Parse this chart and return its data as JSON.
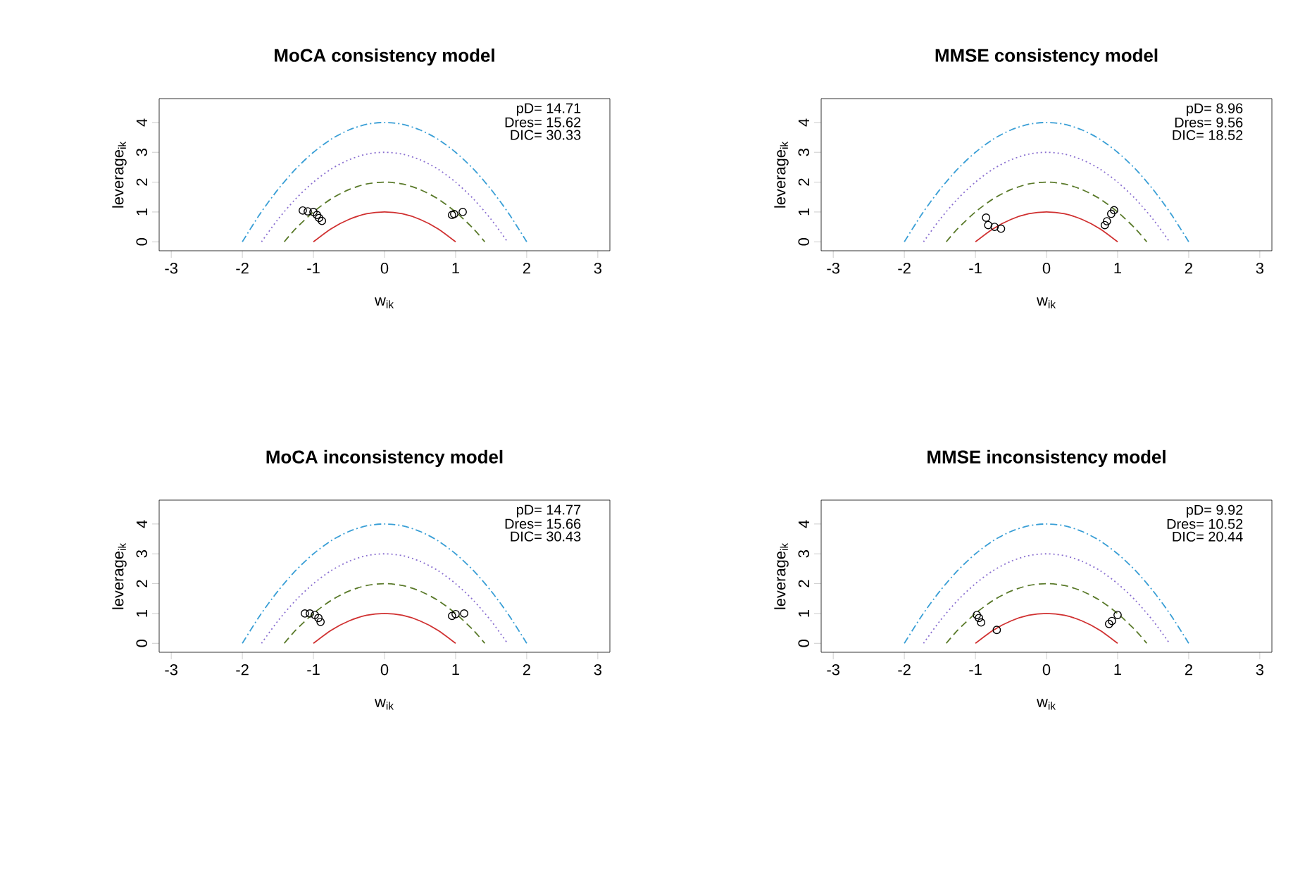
{
  "chart_data": [
    {
      "type": "line",
      "title": "MoCA consistency model",
      "xlabel": "w$_{ik}$",
      "ylabel": "leverage$_{ik}$",
      "xlim": [
        -3.17,
        3.17
      ],
      "ylim": [
        -0.3,
        4.8
      ],
      "xticks": [
        -3,
        -2,
        -1,
        0,
        1,
        2,
        3
      ],
      "yticks": [
        0,
        1,
        2,
        3,
        4
      ],
      "annotations": [
        "pD= 14.71",
        "Dres= 15.62",
        "DIC= 30.33"
      ],
      "series": [
        {
          "color": "#d03030",
          "line_style": "solid",
          "x": [
            -1,
            -0.75,
            -0.5,
            -0.25,
            0,
            0.25,
            0.5,
            0.75,
            1
          ],
          "values": [
            0,
            0.44,
            0.75,
            0.94,
            1,
            0.94,
            0.75,
            0.44,
            0
          ]
        },
        {
          "color": "#5a7a2a",
          "line_style": "dashed",
          "x": [
            -1.41,
            -1.25,
            -1,
            -0.75,
            -0.5,
            -0.25,
            0,
            0.25,
            0.5,
            0.75,
            1,
            1.25,
            1.41
          ],
          "values": [
            0,
            0.44,
            1,
            1.44,
            1.75,
            1.94,
            2,
            1.94,
            1.75,
            1.44,
            1,
            0.44,
            0
          ]
        },
        {
          "color": "#8a6fd0",
          "line_style": "dotted",
          "x": [
            -1.73,
            -1.5,
            -1.25,
            -1,
            -0.75,
            -0.5,
            -0.25,
            0,
            0.25,
            0.5,
            0.75,
            1,
            1.25,
            1.5,
            1.73
          ],
          "values": [
            0,
            0.75,
            1.44,
            2,
            2.44,
            2.75,
            2.94,
            3,
            2.94,
            2.75,
            2.44,
            2,
            1.44,
            0.75,
            0
          ]
        },
        {
          "color": "#3a9fd6",
          "line_style": "dashdot",
          "x": [
            -2,
            -1.75,
            -1.5,
            -1.25,
            -1,
            -0.75,
            -0.5,
            -0.25,
            0,
            0.25,
            0.5,
            0.75,
            1,
            1.25,
            1.5,
            1.75,
            2
          ],
          "values": [
            0,
            0.94,
            1.75,
            2.44,
            3,
            3.44,
            3.75,
            3.94,
            4,
            3.94,
            3.75,
            3.44,
            3,
            2.44,
            1.75,
            0.94,
            0
          ]
        },
        {
          "type": "scatter",
          "marker": "circle",
          "color": "#000000",
          "x": [
            -1.15,
            -1.08,
            -1.0,
            -0.95,
            -0.92,
            -0.88,
            0.95,
            0.98,
            1.1
          ],
          "values": [
            1.05,
            1.02,
            1.0,
            0.9,
            0.8,
            0.7,
            0.9,
            0.93,
            1.0
          ]
        }
      ]
    },
    {
      "type": "line",
      "title": "MMSE consistency model",
      "xlabel": "w$_{ik}$",
      "ylabel": "leverage$_{ik}$",
      "xlim": [
        -3.17,
        3.17
      ],
      "ylim": [
        -0.3,
        4.8
      ],
      "xticks": [
        -3,
        -2,
        -1,
        0,
        1,
        2,
        3
      ],
      "yticks": [
        0,
        1,
        2,
        3,
        4
      ],
      "annotations": [
        "pD= 8.96",
        "Dres= 9.56",
        "DIC= 18.52"
      ],
      "series": [
        {
          "color": "#d03030",
          "line_style": "solid",
          "x": [
            -1,
            -0.75,
            -0.5,
            -0.25,
            0,
            0.25,
            0.5,
            0.75,
            1
          ],
          "values": [
            0,
            0.44,
            0.75,
            0.94,
            1,
            0.94,
            0.75,
            0.44,
            0
          ]
        },
        {
          "color": "#5a7a2a",
          "line_style": "dashed",
          "x": [
            -1.41,
            -1.25,
            -1,
            -0.75,
            -0.5,
            -0.25,
            0,
            0.25,
            0.5,
            0.75,
            1,
            1.25,
            1.41
          ],
          "values": [
            0,
            0.44,
            1,
            1.44,
            1.75,
            1.94,
            2,
            1.94,
            1.75,
            1.44,
            1,
            0.44,
            0
          ]
        },
        {
          "color": "#8a6fd0",
          "line_style": "dotted",
          "x": [
            -1.73,
            -1.5,
            -1.25,
            -1,
            -0.75,
            -0.5,
            -0.25,
            0,
            0.25,
            0.5,
            0.75,
            1,
            1.25,
            1.5,
            1.73
          ],
          "values": [
            0,
            0.75,
            1.44,
            2,
            2.44,
            2.75,
            2.94,
            3,
            2.94,
            2.75,
            2.44,
            2,
            1.44,
            0.75,
            0
          ]
        },
        {
          "color": "#3a9fd6",
          "line_style": "dashdot",
          "x": [
            -2,
            -1.75,
            -1.5,
            -1.25,
            -1,
            -0.75,
            -0.5,
            -0.25,
            0,
            0.25,
            0.5,
            0.75,
            1,
            1.25,
            1.5,
            1.75,
            2
          ],
          "values": [
            0,
            0.94,
            1.75,
            2.44,
            3,
            3.44,
            3.75,
            3.94,
            4,
            3.94,
            3.75,
            3.44,
            3,
            2.44,
            1.75,
            0.94,
            0
          ]
        },
        {
          "type": "scatter",
          "marker": "circle",
          "color": "#000000",
          "x": [
            -0.85,
            -0.82,
            -0.73,
            -0.64,
            0.82,
            0.85,
            0.91,
            0.95
          ],
          "values": [
            0.81,
            0.56,
            0.5,
            0.44,
            0.56,
            0.69,
            0.94,
            1.06
          ]
        }
      ]
    },
    {
      "type": "line",
      "title": "MoCA inconsistency model",
      "xlabel": "w$_{ik}$",
      "ylabel": "leverage$_{ik}$",
      "xlim": [
        -3.17,
        3.17
      ],
      "ylim": [
        -0.3,
        4.8
      ],
      "xticks": [
        -3,
        -2,
        -1,
        0,
        1,
        2,
        3
      ],
      "yticks": [
        0,
        1,
        2,
        3,
        4
      ],
      "annotations": [
        "pD= 14.77",
        "Dres= 15.66",
        "DIC= 30.43"
      ],
      "series": [
        {
          "color": "#d03030",
          "line_style": "solid",
          "x": [
            -1,
            -0.75,
            -0.5,
            -0.25,
            0,
            0.25,
            0.5,
            0.75,
            1
          ],
          "values": [
            0,
            0.44,
            0.75,
            0.94,
            1,
            0.94,
            0.75,
            0.44,
            0
          ]
        },
        {
          "color": "#5a7a2a",
          "line_style": "dashed",
          "x": [
            -1.41,
            -1.25,
            -1,
            -0.75,
            -0.5,
            -0.25,
            0,
            0.25,
            0.5,
            0.75,
            1,
            1.25,
            1.41
          ],
          "values": [
            0,
            0.44,
            1,
            1.44,
            1.75,
            1.94,
            2,
            1.94,
            1.75,
            1.44,
            1,
            0.44,
            0
          ]
        },
        {
          "color": "#8a6fd0",
          "line_style": "dotted",
          "x": [
            -1.73,
            -1.5,
            -1.25,
            -1,
            -0.75,
            -0.5,
            -0.25,
            0,
            0.25,
            0.5,
            0.75,
            1,
            1.25,
            1.5,
            1.73
          ],
          "values": [
            0,
            0.75,
            1.44,
            2,
            2.44,
            2.75,
            2.94,
            3,
            2.94,
            2.75,
            2.44,
            2,
            1.44,
            0.75,
            0
          ]
        },
        {
          "color": "#3a9fd6",
          "line_style": "dashdot",
          "x": [
            -2,
            -1.75,
            -1.5,
            -1.25,
            -1,
            -0.75,
            -0.5,
            -0.25,
            0,
            0.25,
            0.5,
            0.75,
            1,
            1.25,
            1.5,
            1.75,
            2
          ],
          "values": [
            0,
            0.94,
            1.75,
            2.44,
            3,
            3.44,
            3.75,
            3.94,
            4,
            3.94,
            3.75,
            3.44,
            3,
            2.44,
            1.75,
            0.94,
            0
          ]
        },
        {
          "type": "scatter",
          "marker": "circle",
          "color": "#000000",
          "x": [
            -1.12,
            -1.05,
            -0.98,
            -0.93,
            -0.9,
            0.95,
            1.0,
            1.12
          ],
          "values": [
            1.0,
            1.0,
            0.95,
            0.85,
            0.72,
            0.92,
            0.98,
            1.0
          ]
        }
      ]
    },
    {
      "type": "line",
      "title": "MMSE inconsistency model",
      "xlabel": "w$_{ik}$",
      "ylabel": "leverage$_{ik}$",
      "xlim": [
        -3.17,
        3.17
      ],
      "ylim": [
        -0.3,
        4.8
      ],
      "xticks": [
        -3,
        -2,
        -1,
        0,
        1,
        2,
        3
      ],
      "yticks": [
        0,
        1,
        2,
        3,
        4
      ],
      "annotations": [
        "pD= 9.92",
        "Dres= 10.52",
        "DIC= 20.44"
      ],
      "series": [
        {
          "color": "#d03030",
          "line_style": "solid",
          "x": [
            -1,
            -0.75,
            -0.5,
            -0.25,
            0,
            0.25,
            0.5,
            0.75,
            1
          ],
          "values": [
            0,
            0.44,
            0.75,
            0.94,
            1,
            0.94,
            0.75,
            0.44,
            0
          ]
        },
        {
          "color": "#5a7a2a",
          "line_style": "dashed",
          "x": [
            -1.41,
            -1.25,
            -1,
            -0.75,
            -0.5,
            -0.25,
            0,
            0.25,
            0.5,
            0.75,
            1,
            1.25,
            1.41
          ],
          "values": [
            0,
            0.44,
            1,
            1.44,
            1.75,
            1.94,
            2,
            1.94,
            1.75,
            1.44,
            1,
            0.44,
            0
          ]
        },
        {
          "color": "#8a6fd0",
          "line_style": "dotted",
          "x": [
            -1.73,
            -1.5,
            -1.25,
            -1,
            -0.75,
            -0.5,
            -0.25,
            0,
            0.25,
            0.5,
            0.75,
            1,
            1.25,
            1.5,
            1.73
          ],
          "values": [
            0,
            0.75,
            1.44,
            2,
            2.44,
            2.75,
            2.94,
            3,
            2.94,
            2.75,
            2.44,
            2,
            1.44,
            0.75,
            0
          ]
        },
        {
          "color": "#3a9fd6",
          "line_style": "dashdot",
          "x": [
            -2,
            -1.75,
            -1.5,
            -1.25,
            -1,
            -0.75,
            -0.5,
            -0.25,
            0,
            0.25,
            0.5,
            0.75,
            1,
            1.25,
            1.5,
            1.75,
            2
          ],
          "values": [
            0,
            0.94,
            1.75,
            2.44,
            3,
            3.44,
            3.75,
            3.94,
            4,
            3.94,
            3.75,
            3.44,
            3,
            2.44,
            1.75,
            0.94,
            0
          ]
        },
        {
          "type": "scatter",
          "marker": "circle",
          "color": "#000000",
          "x": [
            -0.98,
            -0.95,
            -0.92,
            -0.7,
            0.88,
            0.92,
            1.0
          ],
          "values": [
            0.95,
            0.85,
            0.7,
            0.45,
            0.65,
            0.75,
            0.95
          ]
        }
      ]
    }
  ]
}
